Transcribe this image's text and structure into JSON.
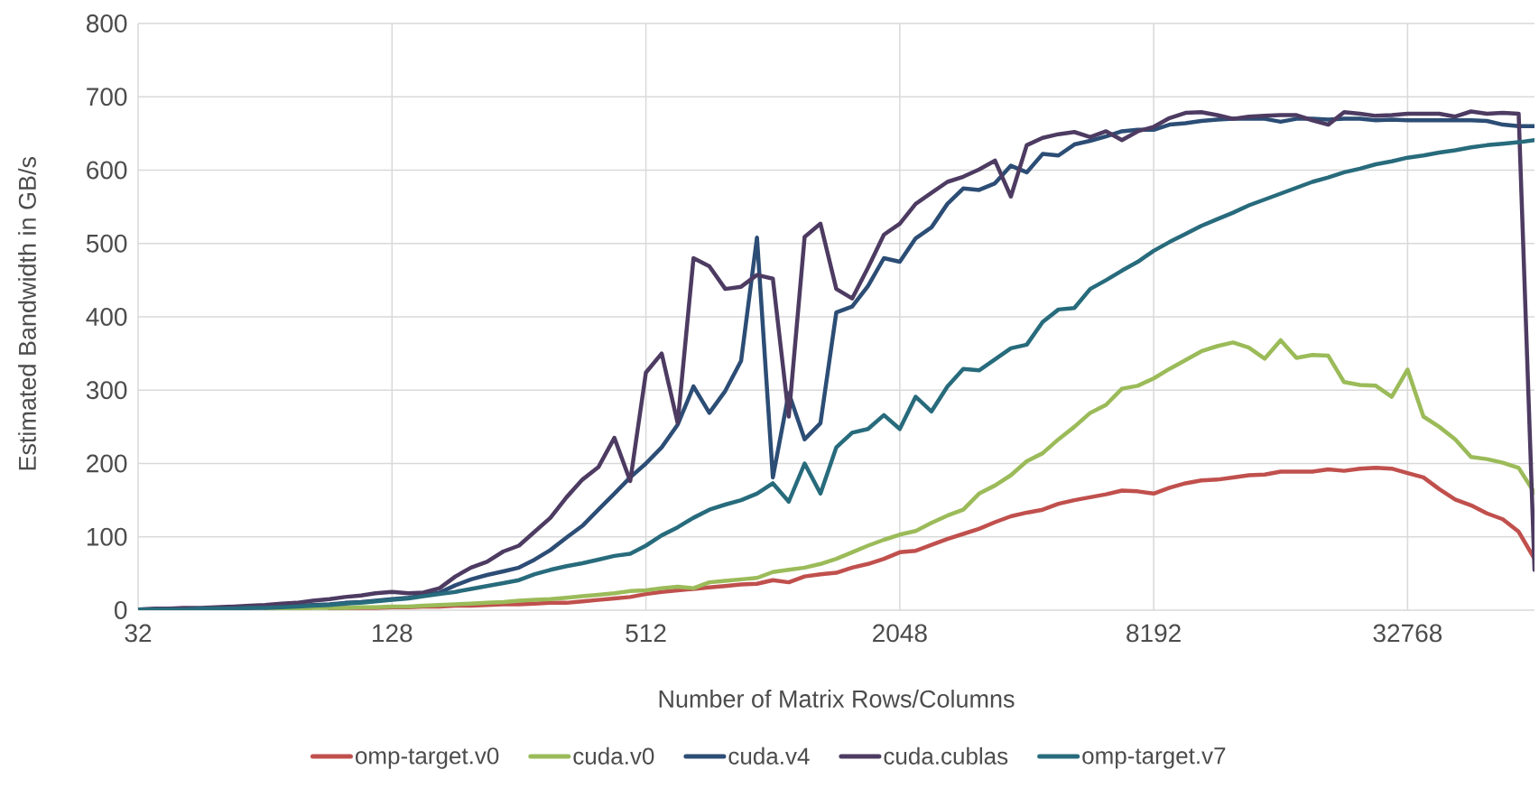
{
  "chart_data": {
    "type": "line",
    "xlabel": "Number of Matrix Rows/Columns",
    "ylabel": "Estimated Bandwidth in GB/s",
    "log": "x",
    "grid": true,
    "legend": "bottom",
    "marker": "none",
    "line_style": "solid",
    "xlim": [
      32,
      65536
    ],
    "xticks": [
      32,
      128,
      512,
      2048,
      8192,
      32768
    ],
    "ylim": [
      0,
      800
    ],
    "yticks": [
      0,
      100,
      200,
      300,
      400,
      500,
      600,
      700,
      800
    ],
    "x": [
      32,
      35,
      38,
      41,
      45,
      49,
      54,
      59,
      64,
      70,
      76,
      83,
      91,
      99,
      108,
      117,
      128,
      140,
      152,
      166,
      181,
      197,
      215,
      235,
      256,
      279,
      304,
      332,
      362,
      395,
      431,
      470,
      512,
      558,
      609,
      664,
      724,
      790,
      861,
      939,
      1024,
      1117,
      1218,
      1328,
      1448,
      1579,
      1722,
      1878,
      2048,
      2233,
      2435,
      2656,
      2896,
      3158,
      3444,
      3756,
      4096,
      4467,
      4871,
      5312,
      5793,
      6317,
      6889,
      7512,
      8192,
      8933,
      9742,
      10624,
      11585,
      12634,
      13777,
      15024,
      16384,
      17867,
      19484,
      21247,
      23170,
      25268,
      27554,
      30048,
      32768,
      35734,
      38968,
      42495,
      46341,
      50535,
      55109,
      60097,
      65536
    ],
    "series": [
      {
        "name": "omp-target.v0",
        "color": "#c0504d",
        "values": [
          null,
          null,
          null,
          null,
          null,
          null,
          null,
          null,
          null,
          null,
          null,
          null,
          2,
          3,
          3,
          3,
          4,
          4,
          5,
          5,
          6,
          6,
          7,
          8,
          8,
          9,
          10,
          10,
          12,
          14,
          16,
          18,
          22,
          25,
          27,
          29,
          31,
          33,
          35,
          36,
          41,
          38,
          46,
          49,
          51,
          58,
          63,
          70,
          79,
          81,
          89,
          97,
          104,
          111,
          120,
          128,
          133,
          137,
          145,
          150,
          154,
          158,
          163,
          162,
          159,
          167,
          173,
          177,
          178,
          181,
          184,
          185,
          189,
          189,
          189,
          192,
          190,
          193,
          194,
          193,
          187,
          181,
          165,
          151,
          143,
          132,
          124,
          107,
          70
        ]
      },
      {
        "name": "cuda.v0",
        "color": "#9bbb59",
        "values": [
          null,
          null,
          null,
          null,
          null,
          null,
          null,
          null,
          2,
          2,
          2,
          3,
          3,
          3,
          4,
          4,
          5,
          5,
          6,
          7,
          8,
          9,
          10,
          11,
          13,
          14,
          15,
          17,
          19,
          21,
          23,
          26,
          27,
          30,
          32,
          30,
          38,
          40,
          42,
          44,
          52,
          55,
          58,
          63,
          70,
          79,
          88,
          96,
          103,
          108,
          119,
          129,
          137,
          159,
          170,
          184,
          203,
          214,
          233,
          250,
          269,
          280,
          302,
          306,
          316,
          329,
          341,
          353,
          360,
          365,
          358,
          343,
          368,
          344,
          348,
          347,
          311,
          307,
          306,
          291,
          328,
          264,
          250,
          233,
          209,
          206,
          201,
          194,
          160
        ]
      },
      {
        "name": "cuda.v4",
        "color": "#2c4d75",
        "values": [
          1,
          1,
          1,
          2,
          2,
          2,
          3,
          3,
          4,
          5,
          6,
          7,
          8,
          10,
          11,
          13,
          15,
          17,
          20,
          24,
          34,
          42,
          48,
          53,
          58,
          69,
          82,
          99,
          115,
          137,
          159,
          181,
          200,
          222,
          253,
          305,
          269,
          299,
          340,
          508,
          181,
          296,
          233,
          255,
          406,
          414,
          442,
          480,
          475,
          507,
          522,
          554,
          575,
          573,
          582,
          606,
          597,
          622,
          620,
          635,
          640,
          646,
          653,
          655,
          655,
          662,
          664,
          667,
          669,
          670,
          670,
          670,
          666,
          670,
          670,
          669,
          670,
          670,
          668,
          669,
          668,
          668,
          668,
          668,
          668,
          667,
          662,
          660,
          660
        ]
      },
      {
        "name": "cuda.cublas",
        "color": "#4d3b62",
        "values": [
          1,
          2,
          2,
          3,
          3,
          4,
          5,
          6,
          7,
          9,
          10,
          13,
          15,
          18,
          20,
          23,
          25,
          23,
          24,
          30,
          46,
          58,
          66,
          80,
          88,
          107,
          126,
          154,
          178,
          195,
          235,
          176,
          324,
          350,
          255,
          480,
          469,
          438,
          441,
          457,
          452,
          264,
          509,
          527,
          438,
          425,
          467,
          512,
          527,
          554,
          569,
          584,
          591,
          601,
          613,
          564,
          634,
          644,
          649,
          652,
          645,
          653,
          641,
          653,
          659,
          671,
          678,
          679,
          675,
          670,
          673,
          674,
          675,
          675,
          668,
          662,
          679,
          677,
          674,
          675,
          677,
          677,
          677,
          673,
          680,
          677,
          678,
          677,
          55
        ]
      },
      {
        "name": "omp-target.v7",
        "color": "#276b7c",
        "values": [
          1,
          1,
          1,
          1,
          2,
          2,
          2,
          3,
          3,
          4,
          5,
          6,
          7,
          9,
          10,
          12,
          14,
          16,
          19,
          22,
          25,
          29,
          33,
          37,
          41,
          49,
          55,
          60,
          64,
          69,
          74,
          77,
          88,
          102,
          113,
          126,
          137,
          144,
          150,
          159,
          173,
          148,
          200,
          159,
          222,
          242,
          247,
          266,
          247,
          291,
          271,
          305,
          329,
          327,
          342,
          357,
          362,
          393,
          410,
          412,
          438,
          450,
          463,
          475,
          490,
          502,
          513,
          524,
          533,
          542,
          552,
          560,
          568,
          576,
          584,
          590,
          597,
          602,
          608,
          612,
          617,
          620,
          624,
          627,
          631,
          634,
          636,
          638,
          641
        ]
      }
    ]
  }
}
